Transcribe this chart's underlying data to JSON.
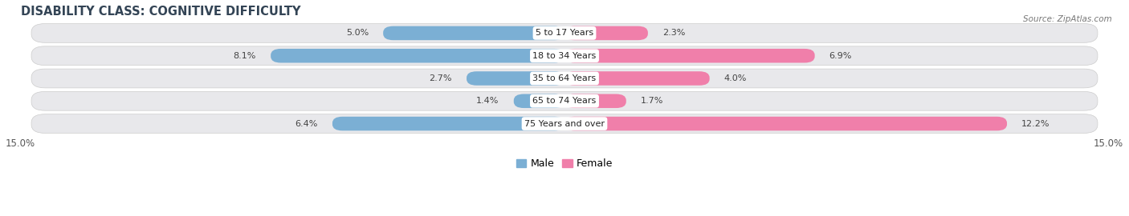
{
  "title": "DISABILITY CLASS: COGNITIVE DIFFICULTY",
  "source": "Source: ZipAtlas.com",
  "categories": [
    "5 to 17 Years",
    "18 to 34 Years",
    "35 to 64 Years",
    "65 to 74 Years",
    "75 Years and over"
  ],
  "male_values": [
    5.0,
    8.1,
    2.7,
    1.4,
    6.4
  ],
  "female_values": [
    2.3,
    6.9,
    4.0,
    1.7,
    12.2
  ],
  "xlim": 15.0,
  "male_color": "#7bafd4",
  "female_color": "#f07faa",
  "male_dark": "#5590bb",
  "female_dark": "#e05588",
  "bar_height": 0.62,
  "row_bg": "#e8e8eb",
  "label_color": "#444444",
  "title_fontsize": 10.5,
  "tick_fontsize": 8.5,
  "value_fontsize": 8,
  "cat_fontsize": 8
}
